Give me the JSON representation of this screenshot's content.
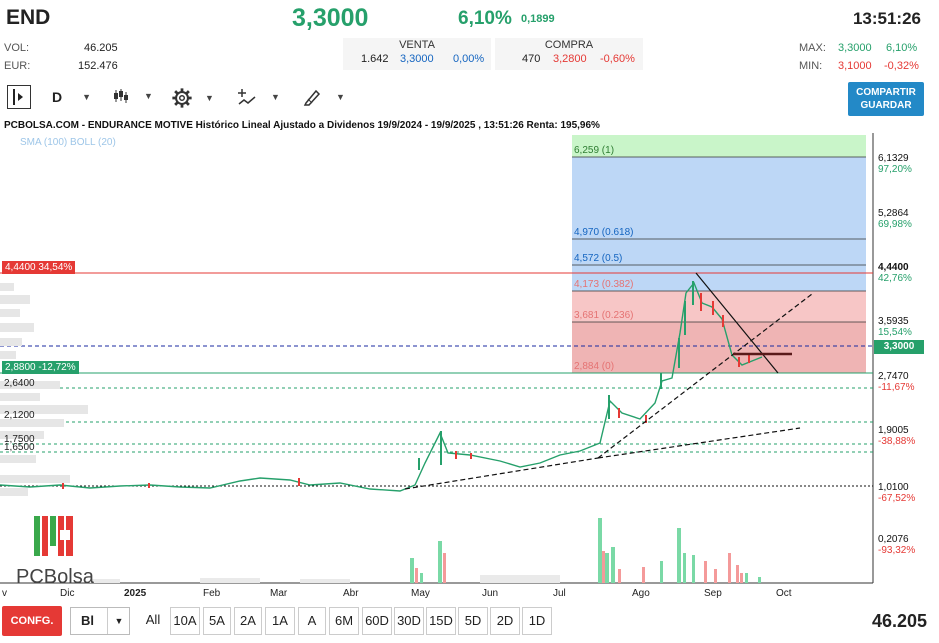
{
  "header": {
    "ticker": "END",
    "price": "3,3000",
    "change_pct": "6,10%",
    "change_abs": "0,1899",
    "time": "13:51:26",
    "vol_label": "VOL:",
    "vol_value": "46.205",
    "eur_label": "EUR:",
    "eur_value": "152.476",
    "max_label": "MAX:",
    "max_value": "3,3000",
    "max_pct": "6,10%",
    "min_label": "MIN:",
    "min_value": "3,1000",
    "min_pct": "-0,32%"
  },
  "quote": {
    "venta_label": "VENTA",
    "compra_label": "COMPRA",
    "venta_qty": "1.642",
    "venta_price": "3,3000",
    "venta_pct": "0,00%",
    "compra_qty": "470",
    "compra_price": "3,2800",
    "compra_pct": "-0,60%"
  },
  "toolbar": {
    "period": "D",
    "share_label_1": "COMPARTIR",
    "share_label_2": "GUARDAR"
  },
  "chart": {
    "title": "PCBOLSA.COM - ENDURANCE MOTIVE Histórico Lineal Ajustado a Dividenos 19/9/2024 - 19/9/2025 , 13:51:26 Renta: 195,96%",
    "legend": "SMA (100) BOLL (20)",
    "left_tags": [
      {
        "text": "4,4400  34,54%"
      },
      {
        "text": "2,8800  -12,72%"
      }
    ],
    "left_levels": [
      "2,6400",
      "2,1200",
      "1,7500",
      "1,6500"
    ],
    "fib_labels": [
      "6,259 (1)",
      "4,970 (0.618)",
      "4,572 (0.5)",
      "4,173 (0.382)",
      "3,681 (0.236)",
      "2,884 (0)"
    ],
    "right_axis": [
      {
        "value": "6,1329",
        "pct": "97,20%"
      },
      {
        "value": "5,2864",
        "pct": "69,98%"
      },
      {
        "value": "4,4400",
        "pct": "42,76%"
      },
      {
        "value": "3,5935",
        "pct": "15,54%"
      },
      {
        "value": "3,3000",
        "pct": ""
      },
      {
        "value": "2,7470",
        "pct": "-11,67%"
      },
      {
        "value": "1,9005",
        "pct": "-38,88%"
      },
      {
        "value": "1,0100",
        "pct": "-67,52%"
      },
      {
        "value": "0,2076",
        "pct": "-93,32%"
      }
    ],
    "x_ticks": [
      "v",
      "Dic",
      "2025",
      "Feb",
      "Mar",
      "Abr",
      "May",
      "Jun",
      "Jul",
      "Ago",
      "Sep",
      "Oct"
    ],
    "logo_text": "PCBolsa"
  },
  "bottom": {
    "config": "CONFG.",
    "mode": "Bl",
    "ranges": [
      "All",
      "10A",
      "5A",
      "2A",
      "1A",
      "A",
      "6M",
      "60D",
      "30D",
      "15D",
      "5D",
      "2D",
      "1D"
    ],
    "volume": "46.205"
  },
  "colors": {
    "up": "#26a06b",
    "down": "#e53935",
    "fib_green": "#c8f2c8",
    "fib_blue": "#bcd6f5",
    "fib_red": "#f6c2c2"
  }
}
